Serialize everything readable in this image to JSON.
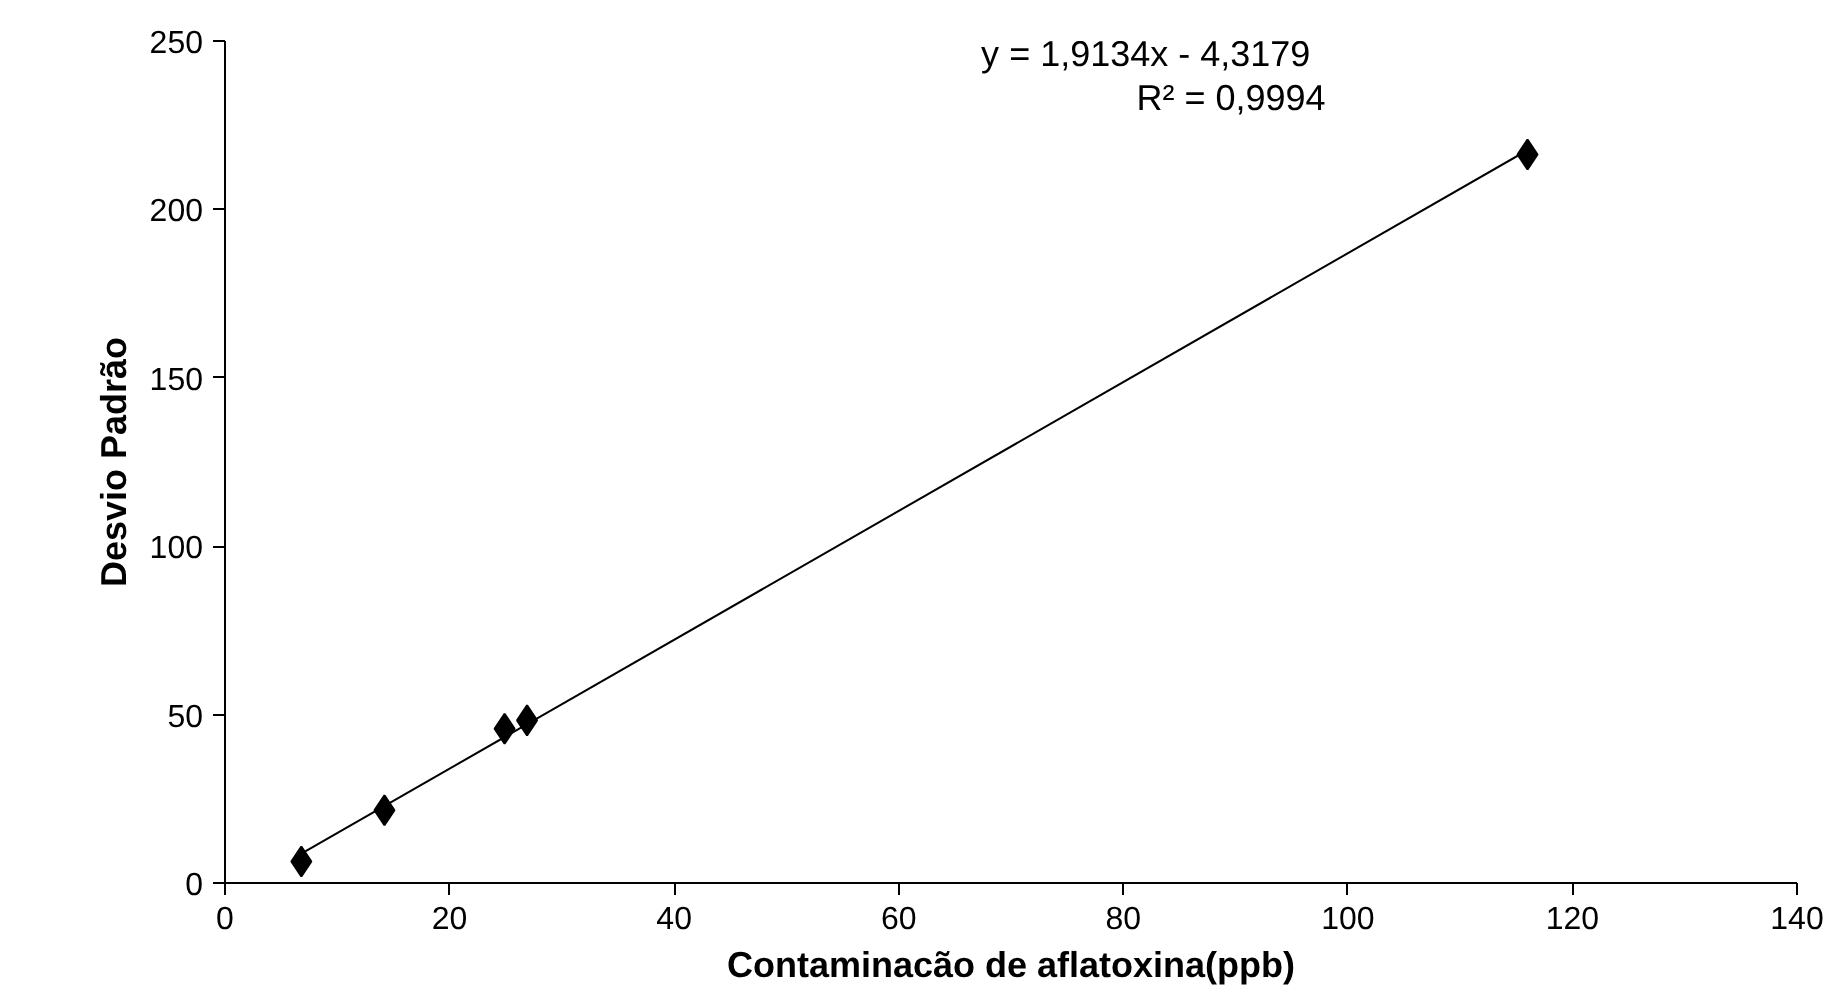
{
  "chart_data": {
    "type": "scatter",
    "xlabel": "Contaminacão de aflatoxina(ppb)",
    "ylabel": "Desvio Padrão",
    "xlim": [
      0,
      140
    ],
    "ylim": [
      0,
      250
    ],
    "xticks": [
      0,
      20,
      40,
      60,
      80,
      100,
      120,
      140
    ],
    "yticks": [
      0,
      50,
      100,
      150,
      200,
      250
    ],
    "grid": false,
    "marker": "diamond",
    "series": [
      {
        "color": "#000000",
        "x": [
          6.8,
          14.2,
          24.9,
          26.9,
          116
        ],
        "values": [
          6.4,
          21.6,
          45.8,
          48.3,
          216.3
        ]
      },
      {
        "type": "line",
        "marker": "none",
        "color": "#000000",
        "line_style": "solid",
        "x": [
          6.8,
          116
        ],
        "values": [
          8.7,
          217.6
        ]
      }
    ],
    "annotations": [
      "y = 1,9134x - 4,3179",
      "R² = 0,9994"
    ]
  }
}
